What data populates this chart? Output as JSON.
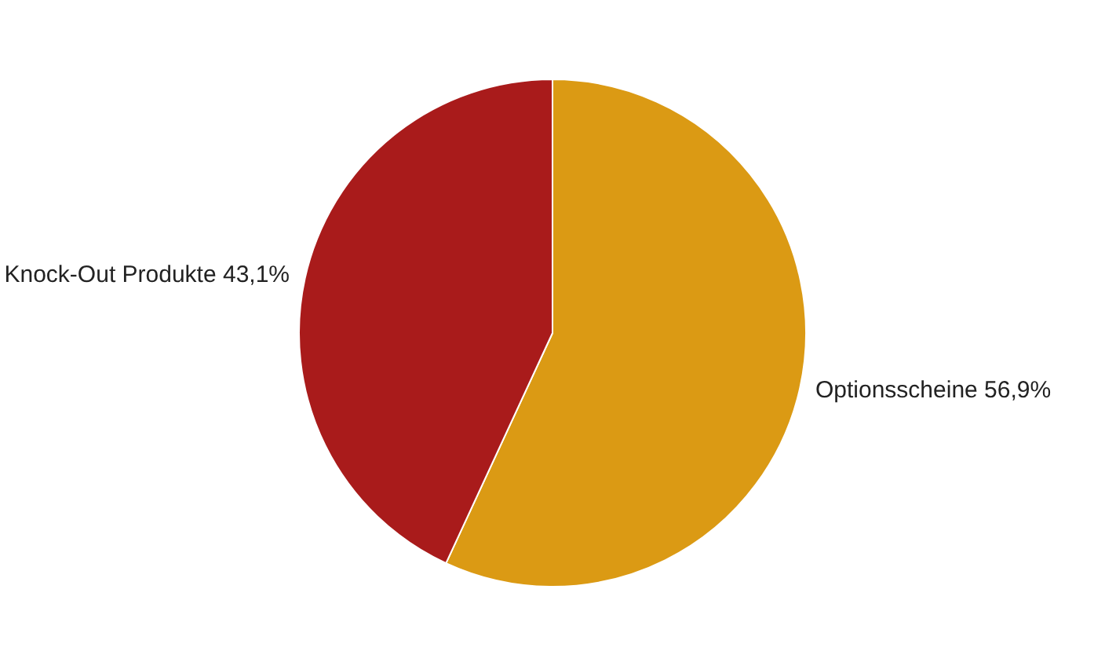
{
  "chart_data": {
    "type": "pie",
    "categories": [
      "Optionsscheine",
      "Knock-Out Produkte"
    ],
    "values": [
      56.9,
      43.1
    ],
    "colors": [
      "#db9a14",
      "#a91b1b"
    ],
    "value_labels": [
      "56,9%",
      "43,1%"
    ],
    "legend": false
  }
}
